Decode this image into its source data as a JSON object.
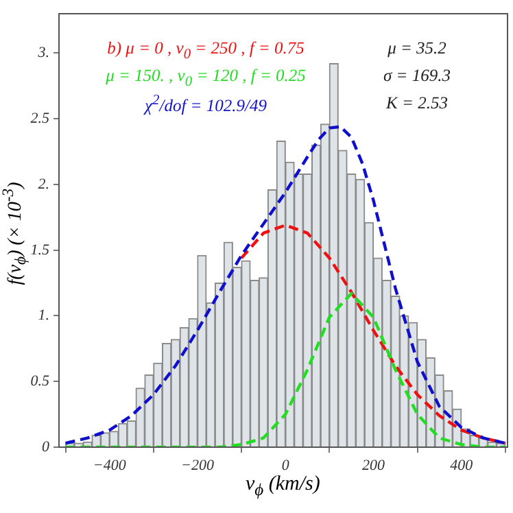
{
  "chart_data": {
    "type": "histogram",
    "xlabel": "v$_{ϕ}$  (km/s)",
    "ylabel": "f(v$_{ϕ}$)   (× 10$^{-3}$)",
    "bins": [
      -500,
      -480,
      -460,
      -440,
      -420,
      -400,
      -380,
      -360,
      -340,
      -320,
      -300,
      -280,
      -260,
      -240,
      -220,
      -200,
      -180,
      -160,
      -140,
      -120,
      -100,
      -80,
      -60,
      -40,
      -20,
      0,
      20,
      40,
      60,
      80,
      100,
      120,
      140,
      160,
      180,
      200,
      220,
      240,
      260,
      280,
      300,
      320,
      340,
      360,
      380,
      400,
      420,
      440,
      460,
      480,
      500
    ],
    "values": [
      0.03,
      0.03,
      0.04,
      0.09,
      0.11,
      0.12,
      0.18,
      0.2,
      0.45,
      0.55,
      0.64,
      0.79,
      0.82,
      0.91,
      0.98,
      1.46,
      1.1,
      1.25,
      1.56,
      1.37,
      1.42,
      1.27,
      1.29,
      1.96,
      2.33,
      2.17,
      2.08,
      2.08,
      2.3,
      2.46,
      2.92,
      2.26,
      2.08,
      2.04,
      1.71,
      1.44,
      1.27,
      1.15,
      1.0,
      0.95,
      0.82,
      0.68,
      0.55,
      0.43,
      0.29,
      0.14,
      0.09,
      0.07,
      0.04,
      0.03
    ],
    "color": "#dfe4e8",
    "series": [
      {
        "type": "line",
        "color": "#ee1111",
        "line_style": "dashed",
        "x": [
          -100,
          -50,
          0,
          50,
          100,
          150,
          200,
          250,
          300,
          350,
          400,
          450,
          500
        ],
        "values": [
          1.44,
          1.63,
          1.69,
          1.63,
          1.44,
          1.18,
          0.89,
          0.62,
          0.4,
          0.24,
          0.13,
          0.07,
          0.03
        ]
      },
      {
        "type": "line",
        "color": "#22dd22",
        "line_style": "dashed",
        "x": [
          -500,
          -400,
          -300,
          -200,
          -150,
          -100,
          -50,
          0,
          50,
          100,
          150,
          200,
          250,
          300,
          350,
          400,
          450,
          500
        ],
        "values": [
          0,
          0,
          0,
          0,
          0,
          0.02,
          0.07,
          0.25,
          0.59,
          0.99,
          1.17,
          0.99,
          0.59,
          0.25,
          0.07,
          0.02,
          0,
          0
        ]
      },
      {
        "type": "line",
        "color": "#1010cc",
        "line_style": "dashed",
        "x": [
          -500,
          -450,
          -400,
          -350,
          -300,
          -250,
          -200,
          -150,
          -100,
          -50,
          0,
          50,
          75,
          100,
          125,
          150,
          175,
          200,
          250,
          300,
          350,
          400,
          450,
          500
        ],
        "values": [
          0.03,
          0.07,
          0.13,
          0.24,
          0.4,
          0.62,
          0.89,
          1.18,
          1.46,
          1.7,
          1.94,
          2.21,
          2.34,
          2.43,
          2.44,
          2.36,
          2.16,
          1.88,
          1.21,
          0.65,
          0.31,
          0.15,
          0.07,
          0.03
        ]
      }
    ],
    "xlim": [
      -515,
      505
    ],
    "xticks": [
      {
        "value": -400,
        "label": "−400"
      },
      {
        "value": -200,
        "label": "−200"
      },
      0,
      200,
      400
    ],
    "ylim": [
      0,
      3.3
    ],
    "yticks": [
      0,
      0.5,
      {
        "value": 1,
        "label": "1."
      },
      1.5,
      {
        "value": 2,
        "label": "2."
      },
      2.5,
      {
        "value": 3,
        "label": "3."
      }
    ],
    "legend": false,
    "annotations": [
      "b)    μ = 0 , v$_{0}$ = 250 , f = 0.75",
      "μ = 150. , v$_{0}$ = 120 , f = 0.25",
      "χ$^{2}$/dof = 102.9/49",
      "μ = 35.2",
      "σ = 169.3",
      "K = 2.53"
    ]
  }
}
